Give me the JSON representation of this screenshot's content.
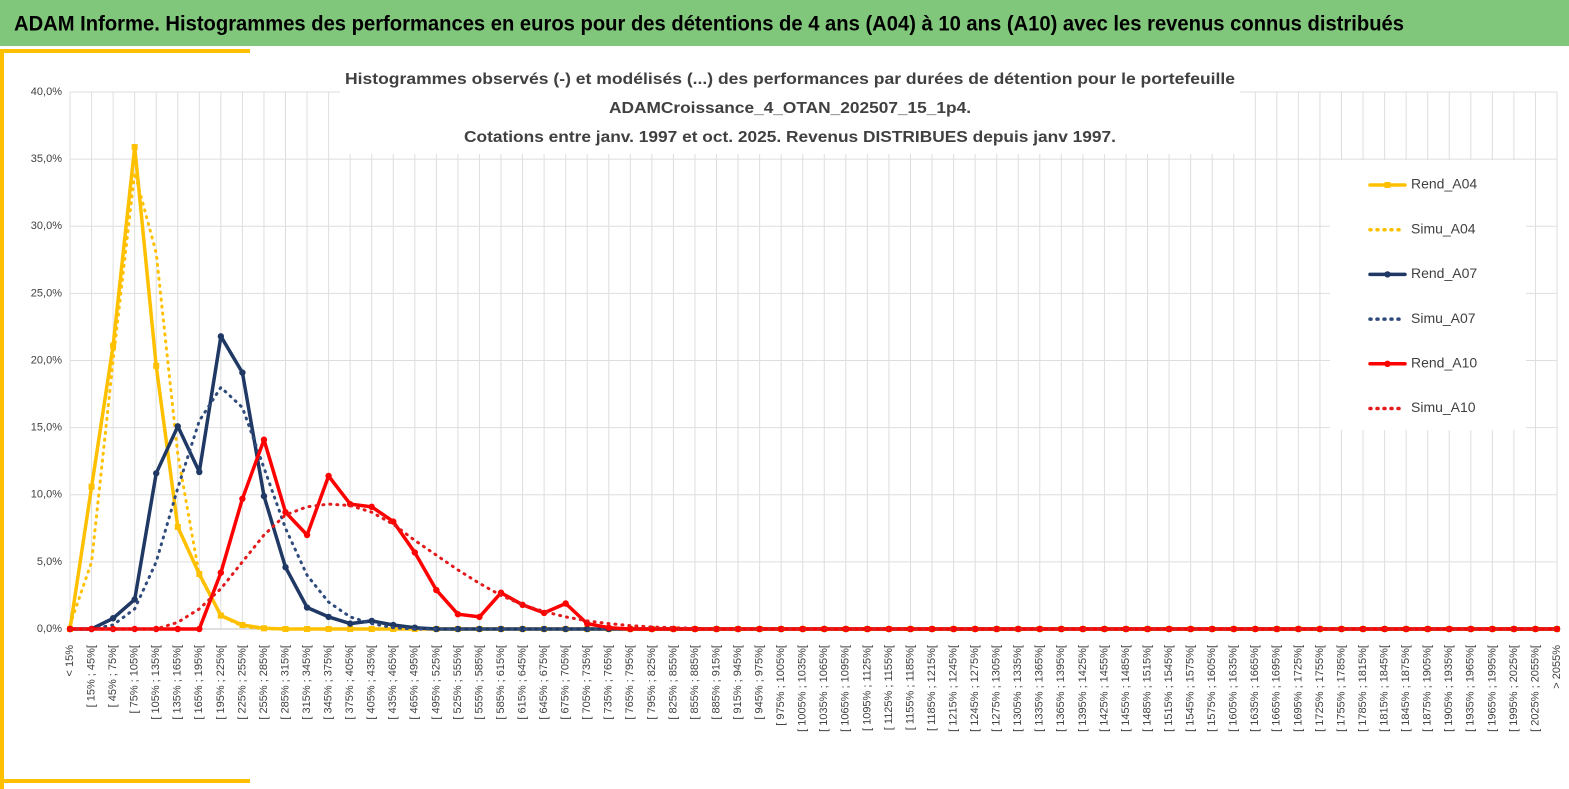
{
  "header": {
    "title": "ADAM Informe. Histogrammes des performances en euros pour des détentions de 4 ans (A04) à 10 ans (A10) avec les revenus connus distribués"
  },
  "chart_data": {
    "type": "line",
    "title": [
      "Histogrammes observés (-) et modélisés (...) des performances  par durées de détention pour le portefeuille",
      "ADAMCroissance_4_OTAN_202507_15_1p4.",
      "Cotations  entre janv. 1997 et oct. 2025. Revenus DISTRIBUES depuis janv 1997."
    ],
    "categories": [
      "< 15%",
      "[ 15% ; 45%[",
      "[ 45% ; 75%[",
      "[ 75% ; 105%[",
      "[ 105% ; 135%[",
      "[ 135% ; 165%[",
      "[ 165% ; 195%[",
      "[ 195% ; 225%[",
      "[ 225% ; 255%[",
      "[ 255% ; 285%[",
      "[ 285% ; 315%[",
      "[ 315% ; 345%[",
      "[ 345% ; 375%[",
      "[ 375% ; 405%[",
      "[ 405% ; 435%[",
      "[ 435% ; 465%[",
      "[ 465% ; 495%[",
      "[ 495% ; 525%[",
      "[ 525% ; 555%[",
      "[ 555% ; 585%[",
      "[ 585% ; 615%[",
      "[ 615% ; 645%[",
      "[ 645% ; 675%[",
      "[ 675% ; 705%[",
      "[ 705% ; 735%[",
      "[ 735% ; 765%[",
      "[ 765% ; 795%[",
      "[ 795% ; 825%[",
      "[ 825% ; 855%[",
      "[ 855% ; 885%[",
      "[ 885% ; 915%[",
      "[ 915% ; 945%[",
      "[ 945% ; 975%[",
      "[ 975% ; 1005%[",
      "[ 1005% ; 1035%[",
      "[ 1035% ; 1065%[",
      "[ 1065% ; 1095%[",
      "[ 1095% ; 1125%[",
      "[ 1125% ; 1155%[",
      "[ 1155% ; 1185%[",
      "[ 1185% ; 1215%[",
      "[ 1215% ; 1245%[",
      "[ 1245% ; 1275%[",
      "[ 1275% ; 1305%[",
      "[ 1305% ; 1335%[",
      "[ 1335% ; 1365%[",
      "[ 1365% ; 1395%[",
      "[ 1395% ; 1425%[",
      "[ 1425% ; 1455%[",
      "[ 1455% ; 1485%[",
      "[ 1485% ; 1515%[",
      "[ 1515% ; 1545%[",
      "[ 1545% ; 1575%[",
      "[ 1575% ; 1605%[",
      "[ 1605% ; 1635%[",
      "[ 1635% ; 1665%[",
      "[ 1665% ; 1695%[",
      "[ 1695% ; 1725%[",
      "[ 1725% ; 1755%[",
      "[ 1755% ; 1785%[",
      "[ 1785% ; 1815%[",
      "[ 1815% ; 1845%[",
      "[ 1845% ; 1875%[",
      "[ 1875% ; 1905%[",
      "[ 1905% ; 1935%[",
      "[ 1935% ; 1965%[",
      "[ 1965% ; 1995%[",
      "[ 1995% ; 2025%[",
      "[ 2025% ; 2055%[",
      "> 2055%"
    ],
    "series": [
      {
        "name": "Rend_A04",
        "color": "#ffc000",
        "line_style": "solid",
        "marker": "square",
        "values": [
          0,
          10.6,
          21.1,
          35.9,
          19.6,
          7.6,
          4.1,
          1.0,
          0.3,
          0.05,
          0,
          0,
          0,
          0,
          0,
          0,
          0,
          0,
          0,
          0,
          0,
          0,
          0,
          0,
          0,
          0,
          0,
          0,
          0,
          0,
          0,
          0,
          0,
          0,
          0,
          0,
          0,
          0,
          0,
          0,
          0,
          0,
          0,
          0,
          0,
          0,
          0,
          0,
          0,
          0,
          0,
          0,
          0,
          0,
          0,
          0,
          0,
          0,
          0,
          0,
          0,
          0,
          0,
          0,
          0,
          0,
          0,
          0,
          0,
          0
        ]
      },
      {
        "name": "Simu_A04",
        "color": "#ffc000",
        "line_style": "dotted",
        "marker": "none",
        "values": [
          0.3,
          5,
          20,
          34,
          28,
          13,
          4,
          1,
          0.2,
          0,
          0,
          0,
          0,
          0,
          0,
          0,
          0,
          0,
          0,
          0,
          0,
          0,
          0,
          0,
          0,
          0,
          0,
          0,
          0,
          0,
          0,
          0,
          0,
          0,
          0,
          0,
          0,
          0,
          0,
          0,
          0,
          0,
          0,
          0,
          0,
          0,
          0,
          0,
          0,
          0,
          0,
          0,
          0,
          0,
          0,
          0,
          0,
          0,
          0,
          0,
          0,
          0,
          0,
          0,
          0,
          0,
          0,
          0,
          0,
          0
        ]
      },
      {
        "name": "Rend_A07",
        "color": "#1f3864",
        "line_style": "solid",
        "marker": "circle",
        "values": [
          0,
          0,
          0.8,
          2.2,
          11.6,
          15.1,
          11.7,
          21.8,
          19.1,
          9.9,
          4.6,
          1.6,
          0.9,
          0.4,
          0.6,
          0.3,
          0.1,
          0,
          0,
          0,
          0,
          0,
          0,
          0,
          0,
          0,
          0,
          0,
          0,
          0,
          0,
          0,
          0,
          0,
          0,
          0,
          0,
          0,
          0,
          0,
          0,
          0,
          0,
          0,
          0,
          0,
          0,
          0,
          0,
          0,
          0,
          0,
          0,
          0,
          0,
          0,
          0,
          0,
          0,
          0,
          0,
          0,
          0,
          0,
          0,
          0,
          0,
          0,
          0,
          0
        ]
      },
      {
        "name": "Simu_A07",
        "color": "#2f4b7c",
        "line_style": "dotted",
        "marker": "none",
        "values": [
          0,
          0,
          0.3,
          1.5,
          5,
          10.5,
          15.5,
          18,
          16.5,
          12,
          7.5,
          4,
          2,
          0.9,
          0.4,
          0.1,
          0,
          0,
          0,
          0,
          0,
          0,
          0,
          0,
          0,
          0,
          0,
          0,
          0,
          0,
          0,
          0,
          0,
          0,
          0,
          0,
          0,
          0,
          0,
          0,
          0,
          0,
          0,
          0,
          0,
          0,
          0,
          0,
          0,
          0,
          0,
          0,
          0,
          0,
          0,
          0,
          0,
          0,
          0,
          0,
          0,
          0,
          0,
          0,
          0,
          0,
          0,
          0,
          0,
          0
        ]
      },
      {
        "name": "Rend_A10",
        "color": "#ff0000",
        "line_style": "solid",
        "marker": "circle",
        "values": [
          0,
          0,
          0,
          0,
          0,
          0,
          0,
          4.2,
          9.7,
          14.1,
          8.7,
          7.0,
          11.4,
          9.3,
          9.1,
          8.0,
          5.7,
          2.9,
          1.1,
          0.9,
          2.7,
          1.8,
          1.2,
          1.9,
          0.4,
          0.1,
          0,
          0,
          0,
          0,
          0,
          0,
          0,
          0,
          0,
          0,
          0,
          0,
          0,
          0,
          0,
          0,
          0,
          0,
          0,
          0,
          0,
          0,
          0,
          0,
          0,
          0,
          0,
          0,
          0,
          0,
          0,
          0,
          0,
          0,
          0,
          0,
          0,
          0,
          0,
          0,
          0,
          0,
          0,
          0
        ]
      },
      {
        "name": "Simu_A10",
        "color": "#e31a1c",
        "line_style": "dotted",
        "marker": "none",
        "values": [
          0,
          0,
          0,
          0,
          0,
          0.5,
          1.5,
          3.0,
          5,
          7,
          8.5,
          9.1,
          9.3,
          9.2,
          8.7,
          7.8,
          6.6,
          5.5,
          4.4,
          3.4,
          2.5,
          1.8,
          1.3,
          0.9,
          0.6,
          0.4,
          0.25,
          0.15,
          0.1,
          0.05,
          0,
          0,
          0,
          0,
          0,
          0,
          0,
          0,
          0,
          0,
          0,
          0,
          0,
          0,
          0,
          0,
          0,
          0,
          0,
          0,
          0,
          0,
          0,
          0,
          0,
          0,
          0,
          0,
          0,
          0,
          0,
          0,
          0,
          0,
          0,
          0,
          0,
          0,
          0,
          0
        ]
      }
    ],
    "ylim": [
      0,
      40
    ],
    "yticks": [
      {
        "value": 0,
        "label": "0,0%"
      },
      {
        "value": 5,
        "label": "5,0%"
      },
      {
        "value": 10,
        "label": "10,0%"
      },
      {
        "value": 15,
        "label": "15,0%"
      },
      {
        "value": 20,
        "label": "20,0%"
      },
      {
        "value": 25,
        "label": "25,0%"
      },
      {
        "value": 30,
        "label": "30,0%"
      },
      {
        "value": 35,
        "label": "35,0%"
      },
      {
        "value": 40,
        "label": "40,0%"
      }
    ],
    "grid": true,
    "legend": "right"
  }
}
